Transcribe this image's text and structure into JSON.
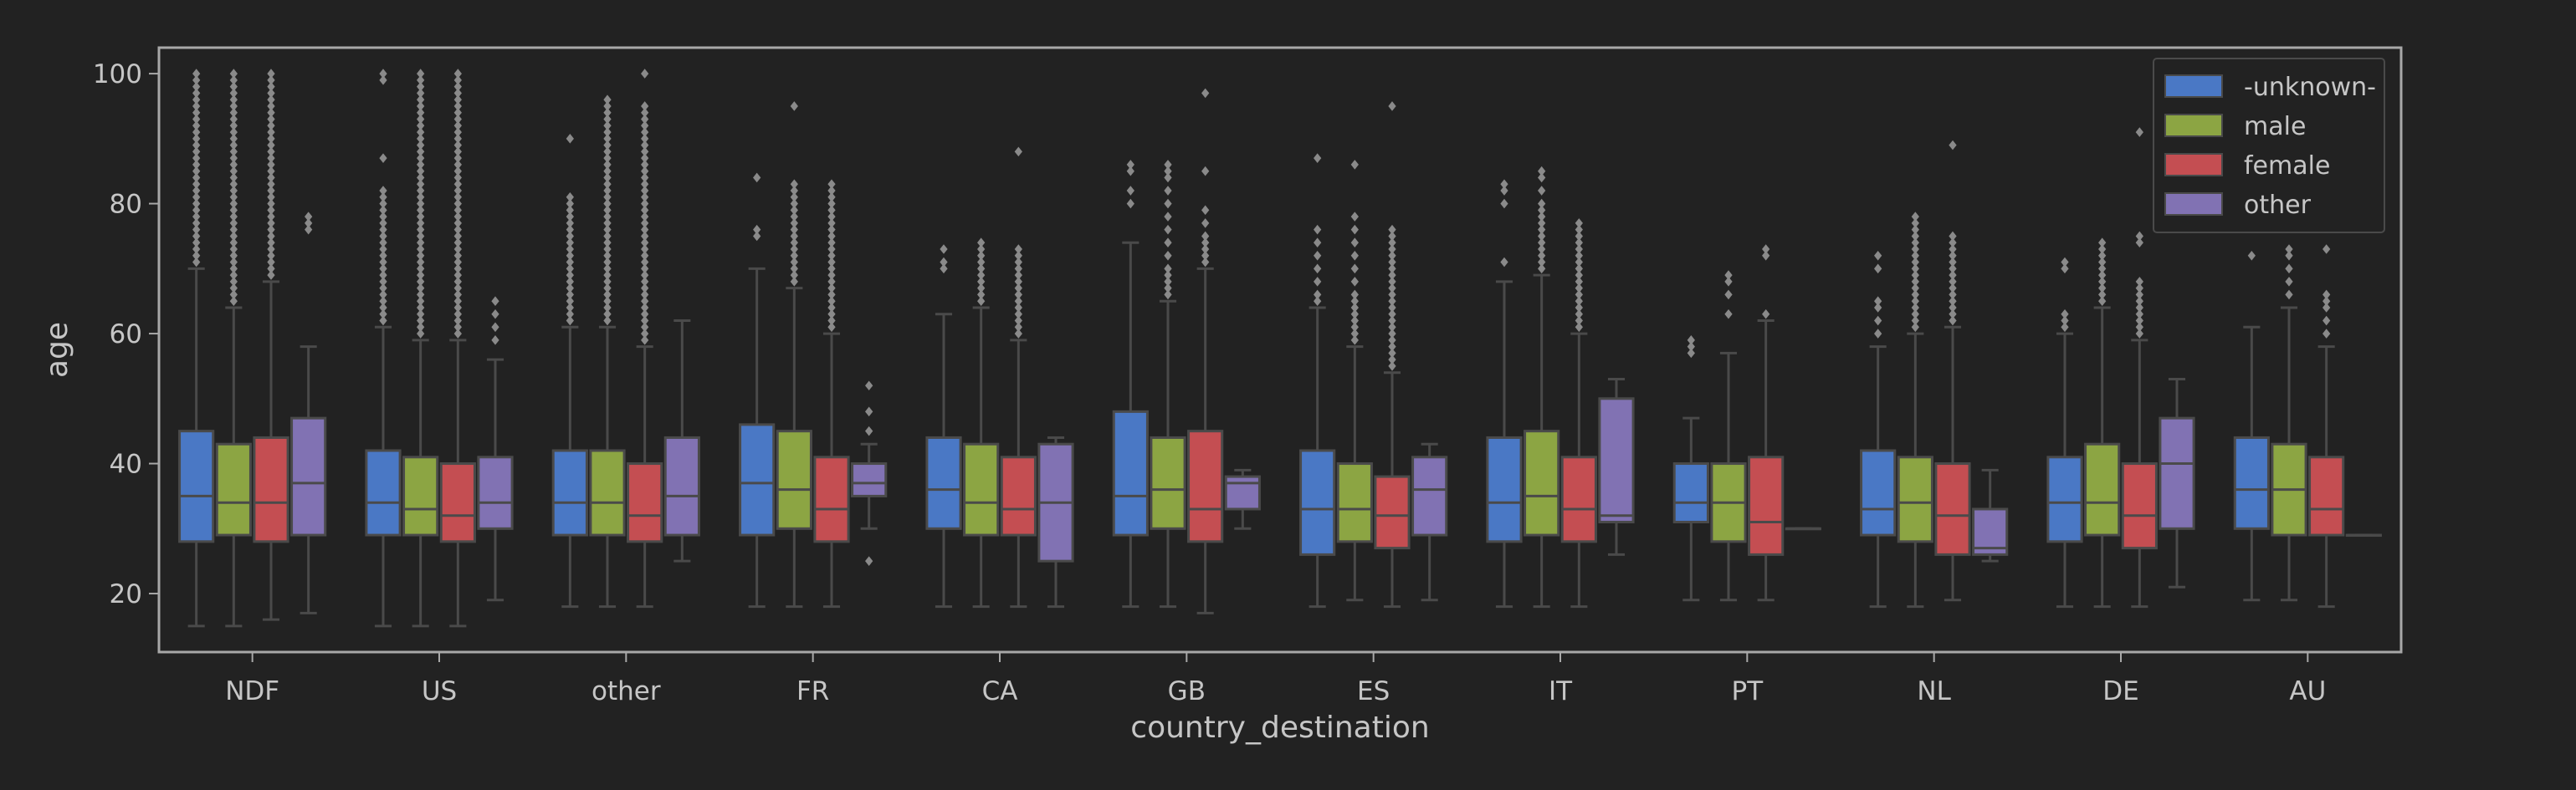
{
  "chart_data": {
    "type": "box",
    "xlabel": "country_destination",
    "ylabel": "age",
    "ylim": [
      11,
      104
    ],
    "yticks": [
      20,
      40,
      60,
      80,
      100
    ],
    "categories": [
      "NDF",
      "US",
      "other",
      "FR",
      "CA",
      "GB",
      "ES",
      "IT",
      "PT",
      "NL",
      "DE",
      "AU"
    ],
    "legend": {
      "placement": "top-right"
    },
    "colors": {
      "background": "#222222",
      "frame": "#a8a8a8",
      "text": "#c6c6c6",
      "box_line": "#4a4a4a",
      "outlier": "#8a8a8a"
    },
    "series": [
      {
        "name": "-unknown-",
        "color": "#4a78c5",
        "boxes": [
          {
            "min": 15,
            "q1": 28,
            "median": 35,
            "q3": 45,
            "max": 70,
            "outliers": [
              71,
              72,
              73,
              74,
              75,
              76,
              77,
              78,
              79,
              80,
              81,
              82,
              83,
              84,
              85,
              86,
              87,
              88,
              89,
              90,
              91,
              92,
              93,
              94,
              95,
              96,
              97,
              98,
              99,
              100
            ]
          },
          {
            "min": 15,
            "q1": 29,
            "median": 34,
            "q3": 42,
            "max": 61,
            "outliers": [
              62,
              63,
              64,
              65,
              66,
              67,
              68,
              69,
              70,
              71,
              72,
              73,
              74,
              75,
              76,
              77,
              78,
              79,
              80,
              81,
              82,
              87,
              99,
              100
            ]
          },
          {
            "min": 18,
            "q1": 29,
            "median": 34,
            "q3": 42,
            "max": 61,
            "outliers": [
              62,
              63,
              64,
              65,
              66,
              67,
              68,
              69,
              70,
              71,
              72,
              73,
              74,
              75,
              76,
              77,
              78,
              79,
              80,
              81,
              90
            ]
          },
          {
            "min": 18,
            "q1": 29,
            "median": 37,
            "q3": 46,
            "max": 70,
            "outliers": [
              75,
              76,
              84
            ]
          },
          {
            "min": 18,
            "q1": 30,
            "median": 36,
            "q3": 44,
            "max": 63,
            "outliers": [
              70,
              71,
              73
            ]
          },
          {
            "min": 18,
            "q1": 29,
            "median": 35,
            "q3": 48,
            "max": 74,
            "outliers": [
              80,
              82,
              85,
              86
            ]
          },
          {
            "min": 18,
            "q1": 26,
            "median": 33,
            "q3": 42,
            "max": 64,
            "outliers": [
              65,
              66,
              68,
              70,
              72,
              74,
              76,
              87
            ]
          },
          {
            "min": 18,
            "q1": 28,
            "median": 34,
            "q3": 44,
            "max": 68,
            "outliers": [
              71,
              80,
              82,
              83
            ]
          },
          {
            "min": 19,
            "q1": 31,
            "median": 34,
            "q3": 40,
            "max": 47,
            "outliers": [
              57,
              58,
              59
            ]
          },
          {
            "min": 18,
            "q1": 29,
            "median": 33,
            "q3": 42,
            "max": 58,
            "outliers": [
              60,
              62,
              64,
              65,
              70,
              72
            ]
          },
          {
            "min": 18,
            "q1": 28,
            "median": 34,
            "q3": 41,
            "max": 60,
            "outliers": [
              61,
              62,
              63,
              70,
              71
            ]
          },
          {
            "min": 19,
            "q1": 30,
            "median": 36,
            "q3": 44,
            "max": 61,
            "outliers": [
              72
            ]
          }
        ]
      },
      {
        "name": "male",
        "color": "#8ca543",
        "boxes": [
          {
            "min": 15,
            "q1": 29,
            "median": 34,
            "q3": 43,
            "max": 64,
            "outliers": [
              65,
              66,
              67,
              68,
              69,
              70,
              71,
              72,
              73,
              74,
              75,
              76,
              77,
              78,
              79,
              80,
              81,
              82,
              83,
              84,
              85,
              86,
              87,
              88,
              89,
              90,
              91,
              92,
              93,
              94,
              95,
              96,
              97,
              98,
              99,
              100
            ]
          },
          {
            "min": 15,
            "q1": 29,
            "median": 33,
            "q3": 41,
            "max": 59,
            "outliers": [
              60,
              61,
              62,
              63,
              64,
              65,
              66,
              67,
              68,
              69,
              70,
              71,
              72,
              73,
              74,
              75,
              76,
              77,
              78,
              79,
              80,
              81,
              82,
              83,
              84,
              85,
              86,
              87,
              88,
              89,
              90,
              91,
              92,
              93,
              94,
              95,
              96,
              97,
              98,
              99,
              100
            ]
          },
          {
            "min": 18,
            "q1": 29,
            "median": 34,
            "q3": 42,
            "max": 61,
            "outliers": [
              62,
              63,
              64,
              65,
              66,
              67,
              68,
              69,
              70,
              71,
              72,
              73,
              74,
              75,
              76,
              77,
              78,
              79,
              80,
              81,
              82,
              83,
              84,
              85,
              86,
              87,
              88,
              89,
              90,
              91,
              92,
              93,
              94,
              95,
              96
            ]
          },
          {
            "min": 18,
            "q1": 30,
            "median": 36,
            "q3": 45,
            "max": 67,
            "outliers": [
              68,
              69,
              70,
              71,
              72,
              73,
              74,
              75,
              76,
              77,
              78,
              79,
              80,
              81,
              82,
              83,
              95
            ]
          },
          {
            "min": 18,
            "q1": 29,
            "median": 34,
            "q3": 43,
            "max": 64,
            "outliers": [
              65,
              66,
              67,
              68,
              69,
              70,
              71,
              72,
              73,
              74
            ]
          },
          {
            "min": 18,
            "q1": 30,
            "median": 36,
            "q3": 44,
            "max": 65,
            "outliers": [
              66,
              67,
              68,
              69,
              70,
              72,
              74,
              76,
              78,
              80,
              82,
              84,
              85,
              86
            ]
          },
          {
            "min": 19,
            "q1": 28,
            "median": 33,
            "q3": 40,
            "max": 58,
            "outliers": [
              59,
              60,
              61,
              62,
              63,
              64,
              65,
              66,
              68,
              70,
              72,
              74,
              76,
              78,
              86
            ]
          },
          {
            "min": 18,
            "q1": 29,
            "median": 35,
            "q3": 45,
            "max": 69,
            "outliers": [
              70,
              71,
              72,
              73,
              74,
              75,
              76,
              77,
              78,
              79,
              80,
              82,
              84,
              85
            ]
          },
          {
            "min": 19,
            "q1": 28,
            "median": 34,
            "q3": 40,
            "max": 57,
            "outliers": [
              63,
              66,
              68,
              69
            ]
          },
          {
            "min": 18,
            "q1": 28,
            "median": 34,
            "q3": 41,
            "max": 60,
            "outliers": [
              61,
              62,
              63,
              64,
              65,
              66,
              67,
              68,
              69,
              70,
              71,
              72,
              73,
              74,
              75,
              76,
              77,
              78
            ]
          },
          {
            "min": 18,
            "q1": 29,
            "median": 34,
            "q3": 43,
            "max": 64,
            "outliers": [
              65,
              66,
              67,
              68,
              69,
              70,
              71,
              72,
              73,
              74
            ]
          },
          {
            "min": 19,
            "q1": 29,
            "median": 36,
            "q3": 43,
            "max": 64,
            "outliers": [
              66,
              68,
              70,
              72,
              73
            ]
          }
        ]
      },
      {
        "name": "female",
        "color": "#c44e52",
        "boxes": [
          {
            "min": 16,
            "q1": 28,
            "median": 34,
            "q3": 44,
            "max": 68,
            "outliers": [
              69,
              70,
              71,
              72,
              73,
              74,
              75,
              76,
              77,
              78,
              79,
              80,
              81,
              82,
              83,
              84,
              85,
              86,
              87,
              88,
              89,
              90,
              91,
              92,
              93,
              94,
              95,
              96,
              97,
              98,
              99,
              100
            ]
          },
          {
            "min": 15,
            "q1": 28,
            "median": 32,
            "q3": 40,
            "max": 59,
            "outliers": [
              60,
              61,
              62,
              63,
              64,
              65,
              66,
              67,
              68,
              69,
              70,
              71,
              72,
              73,
              74,
              75,
              76,
              77,
              78,
              79,
              80,
              81,
              82,
              83,
              84,
              85,
              86,
              87,
              88,
              89,
              90,
              91,
              92,
              93,
              94,
              95,
              96,
              97,
              98,
              99,
              100
            ]
          },
          {
            "min": 18,
            "q1": 28,
            "median": 32,
            "q3": 40,
            "max": 58,
            "outliers": [
              59,
              60,
              61,
              62,
              63,
              64,
              65,
              66,
              67,
              68,
              69,
              70,
              71,
              72,
              73,
              74,
              75,
              76,
              77,
              78,
              79,
              80,
              81,
              82,
              83,
              84,
              85,
              86,
              87,
              88,
              89,
              90,
              91,
              92,
              93,
              94,
              95,
              100
            ]
          },
          {
            "min": 18,
            "q1": 28,
            "median": 33,
            "q3": 41,
            "max": 60,
            "outliers": [
              61,
              62,
              63,
              64,
              65,
              66,
              67,
              68,
              69,
              70,
              71,
              72,
              73,
              74,
              75,
              76,
              77,
              78,
              79,
              80,
              81,
              82,
              83
            ]
          },
          {
            "min": 18,
            "q1": 29,
            "median": 33,
            "q3": 41,
            "max": 59,
            "outliers": [
              60,
              61,
              62,
              63,
              64,
              65,
              66,
              67,
              68,
              69,
              70,
              71,
              72,
              73,
              88
            ]
          },
          {
            "min": 17,
            "q1": 28,
            "median": 33,
            "q3": 45,
            "max": 70,
            "outliers": [
              71,
              72,
              73,
              74,
              75,
              77,
              79,
              85,
              97
            ]
          },
          {
            "min": 18,
            "q1": 27,
            "median": 32,
            "q3": 38,
            "max": 54,
            "outliers": [
              55,
              56,
              57,
              58,
              59,
              60,
              61,
              62,
              63,
              64,
              65,
              66,
              67,
              68,
              69,
              70,
              71,
              72,
              73,
              74,
              75,
              76,
              95
            ]
          },
          {
            "min": 18,
            "q1": 28,
            "median": 33,
            "q3": 41,
            "max": 60,
            "outliers": [
              61,
              62,
              63,
              64,
              65,
              66,
              67,
              68,
              69,
              70,
              71,
              72,
              73,
              74,
              75,
              76,
              77
            ]
          },
          {
            "min": 19,
            "q1": 26,
            "median": 31,
            "q3": 41,
            "max": 62,
            "outliers": [
              63,
              72,
              73
            ]
          },
          {
            "min": 19,
            "q1": 26,
            "median": 32,
            "q3": 40,
            "max": 61,
            "outliers": [
              62,
              63,
              64,
              65,
              66,
              67,
              68,
              69,
              70,
              71,
              72,
              73,
              74,
              75,
              89
            ]
          },
          {
            "min": 18,
            "q1": 27,
            "median": 32,
            "q3": 40,
            "max": 59,
            "outliers": [
              60,
              61,
              62,
              63,
              64,
              65,
              66,
              67,
              68,
              74,
              75,
              91
            ]
          },
          {
            "min": 18,
            "q1": 29,
            "median": 33,
            "q3": 41,
            "max": 58,
            "outliers": [
              60,
              62,
              64,
              65,
              66,
              73
            ]
          }
        ]
      },
      {
        "name": "other",
        "color": "#8172b3",
        "boxes": [
          {
            "min": 17,
            "q1": 29,
            "median": 37,
            "q3": 47,
            "max": 58,
            "outliers": [
              76,
              77,
              78
            ]
          },
          {
            "min": 19,
            "q1": 30,
            "median": 34,
            "q3": 41,
            "max": 56,
            "outliers": [
              59,
              61,
              63,
              65
            ]
          },
          {
            "min": 25,
            "q1": 29,
            "median": 35,
            "q3": 44,
            "max": 62,
            "outliers": []
          },
          {
            "min": 30,
            "q1": 35,
            "median": 37,
            "q3": 40,
            "max": 43,
            "outliers": [
              25,
              45,
              48,
              52
            ]
          },
          {
            "min": 18,
            "q1": 25,
            "median": 34,
            "q3": 43,
            "max": 44,
            "outliers": []
          },
          {
            "min": 30,
            "q1": 33,
            "median": 37,
            "q3": 38,
            "max": 39,
            "outliers": []
          },
          {
            "min": 19,
            "q1": 29,
            "median": 36,
            "q3": 41,
            "max": 43,
            "outliers": []
          },
          {
            "min": 26,
            "q1": 31,
            "median": 32,
            "q3": 50,
            "max": 53,
            "outliers": []
          },
          {
            "min": 30,
            "q1": 30,
            "median": 30,
            "q3": 30,
            "max": 30,
            "outliers": []
          },
          {
            "min": 25,
            "q1": 26,
            "median": 27,
            "q3": 33,
            "max": 39,
            "outliers": []
          },
          {
            "min": 21,
            "q1": 30,
            "median": 40,
            "q3": 47,
            "max": 53,
            "outliers": []
          },
          {
            "min": 29,
            "q1": 29,
            "median": 29,
            "q3": 29,
            "max": 29,
            "outliers": []
          }
        ]
      }
    ]
  }
}
